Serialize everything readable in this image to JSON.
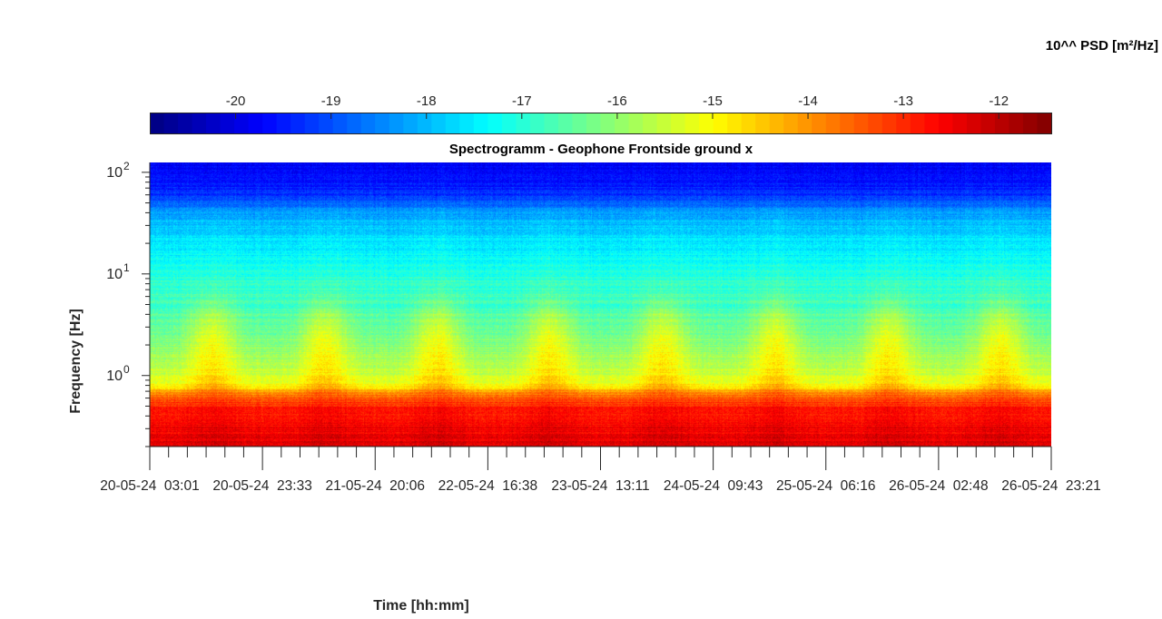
{
  "chart_data": {
    "type": "heatmap",
    "title": "Spectrogramm - Geophone Frontside ground x",
    "xlabel": "Time [hh:mm]",
    "ylabel": "Frequency [Hz]",
    "colorbar": {
      "label": "10^^ PSD [m²/Hz]",
      "tick_values": [
        -20,
        -19,
        -18,
        -17,
        -16,
        -15,
        -14,
        -13,
        -12
      ],
      "tick_labels": [
        "-20",
        "-19",
        "-18",
        "-17",
        "-16",
        "-15",
        "-14",
        "-13",
        "-12"
      ],
      "range": [
        -20.9,
        -11.45
      ],
      "colormap": "jet",
      "colors": [
        "#00007f",
        "#0000ff",
        "#007fff",
        "#00ffff",
        "#7fff7f",
        "#ffff00",
        "#ff7f00",
        "#ff0000",
        "#7f0000"
      ]
    },
    "y_scale": "log",
    "ylim": [
      0.2,
      125
    ],
    "y_ticks": [
      {
        "base": "10",
        "exp": "2"
      },
      {
        "base": "10",
        "exp": "1"
      },
      {
        "base": "10",
        "exp": "0"
      }
    ],
    "x_tick_labels": [
      "20-05-24  03:01",
      "20-05-24  23:33",
      "21-05-24  20:06",
      "22-05-24  16:38",
      "23-05-24  13:11",
      "24-05-24  09:43",
      "25-05-24  06:16",
      "26-05-24  02:48",
      "26-05-24  23:21"
    ],
    "x_ticks_per_label_interval": 6,
    "grid": false,
    "psd_profile": {
      "frequency_hz": [
        0.2,
        0.3,
        0.45,
        0.6,
        0.8,
        1.0,
        1.5,
        2.5,
        4,
        5,
        6,
        10,
        20,
        40,
        60,
        100,
        125
      ],
      "daytime_log10_psd": [
        -12.2,
        -12.4,
        -12.6,
        -13.2,
        -14.2,
        -14.7,
        -14.9,
        -15.2,
        -15.8,
        -16.2,
        -16.5,
        -17.0,
        -17.5,
        -18.1,
        -19.3,
        -19.7,
        -19.8
      ],
      "night_log10_psd": [
        -12.4,
        -12.6,
        -12.8,
        -13.4,
        -15.0,
        -15.5,
        -15.9,
        -16.3,
        -16.6,
        -16.8,
        -16.8,
        -17.1,
        -17.6,
        -18.2,
        -19.3,
        -19.7,
        -19.8
      ]
    }
  }
}
